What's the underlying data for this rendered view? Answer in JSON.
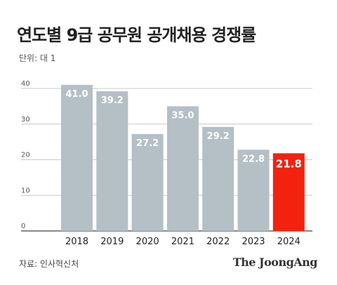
{
  "title": "연도별 9급 공무원 공개채용 경쟁률",
  "unit_label": "단위: 대 1",
  "source": "자료: 인사혁신처",
  "brand": "The JoongAng",
  "colors": {
    "bar": "#b4bfc6",
    "highlight": "#f2220f",
    "grid": "#c9c9c9",
    "label": "#ffffff"
  },
  "chart_data": {
    "type": "bar",
    "title": "연도별 9급 공무원 공개채용 경쟁률",
    "xlabel": "",
    "ylabel": "",
    "categories": [
      "2018",
      "2019",
      "2020",
      "2021",
      "2022",
      "2023",
      "2024"
    ],
    "values": [
      41.0,
      39.2,
      27.2,
      35.0,
      29.2,
      22.8,
      21.8
    ],
    "value_labels": [
      "41.0",
      "39.2",
      "27.2",
      "35.0",
      "29.2",
      "22.8",
      "21.8"
    ],
    "highlight_category": "2024",
    "ylim": [
      0,
      40
    ],
    "yticks": [
      0,
      10,
      20,
      30,
      40
    ],
    "grid": true,
    "legend": "none"
  }
}
